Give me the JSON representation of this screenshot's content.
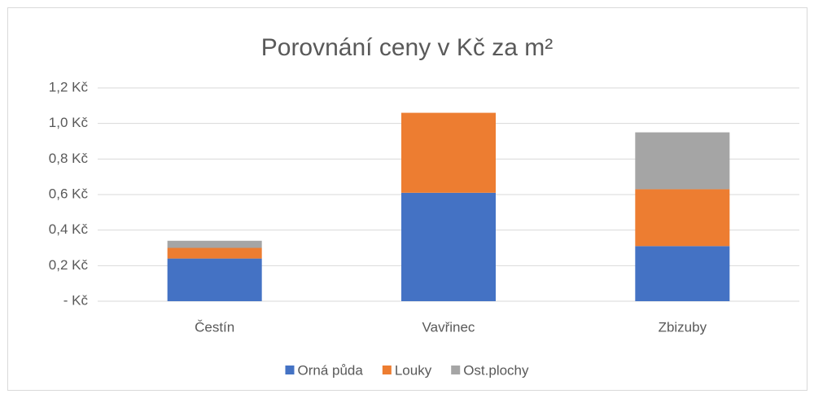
{
  "chart_data": {
    "type": "bar",
    "stacked": true,
    "title": "Porovnání ceny v Kč za m²",
    "categories": [
      "Čestín",
      "Vavřinec",
      "Zbizuby"
    ],
    "series": [
      {
        "name": "Orná půda",
        "color": "#4472c4",
        "values": [
          0.24,
          0.61,
          0.31
        ]
      },
      {
        "name": "Louky",
        "color": "#ed7d31",
        "values": [
          0.06,
          0.45,
          0.32
        ]
      },
      {
        "name": "Ost.plochy",
        "color": "#a5a5a5",
        "values": [
          0.04,
          0,
          0.32
        ]
      }
    ],
    "ylim": [
      0,
      1.2
    ],
    "yticks": [
      {
        "value": 0,
        "label": "-  Kč"
      },
      {
        "value": 0.2,
        "label": "0,2 Kč"
      },
      {
        "value": 0.4,
        "label": "0,4 Kč"
      },
      {
        "value": 0.6,
        "label": "0,6 Kč"
      },
      {
        "value": 0.8,
        "label": "0,8 Kč"
      },
      {
        "value": 1.0,
        "label": "1,0 Kč"
      },
      {
        "value": 1.2,
        "label": "1,2 Kč"
      }
    ],
    "grid": true,
    "legend": "bottom"
  }
}
